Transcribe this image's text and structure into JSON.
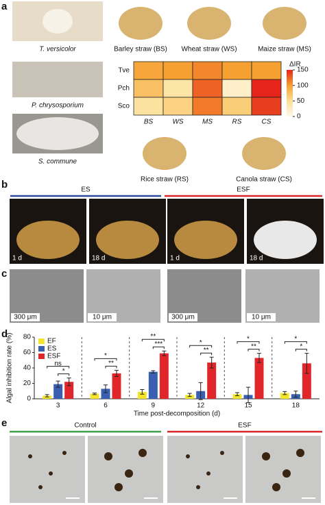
{
  "panel_labels": [
    "a",
    "b",
    "c",
    "d",
    "e"
  ],
  "panel_a": {
    "fungi": [
      "T. versicolor",
      "P. chrysosporium",
      "S. commune"
    ],
    "straws": [
      "Barley straw (BS)",
      "Wheat straw (WS)",
      "Maize straw (MS)",
      "Rice straw (RS)",
      "Canola straw (CS)"
    ],
    "heatmap": {
      "type": "heatmap",
      "rows": [
        "Tve",
        "Pch",
        "Sco"
      ],
      "columns": [
        "BS",
        "WS",
        "MS",
        "RS",
        "CS"
      ],
      "values": [
        [
          95,
          100,
          110,
          100,
          100
        ],
        [
          75,
          40,
          125,
          20,
          150
        ],
        [
          45,
          60,
          115,
          65,
          140
        ]
      ],
      "colorbar_title": "ΔIR",
      "lim": [
        0,
        150
      ],
      "ticks": [
        0,
        50,
        100,
        150
      ]
    }
  },
  "panel_b": {
    "groups": [
      "ES",
      "ESF"
    ],
    "time_labels": [
      "1 d",
      "18 d",
      "1 d",
      "18 d"
    ]
  },
  "panel_c": {
    "scale_labels": [
      "300 μm",
      "10 μm",
      "300 μm",
      "10 μm"
    ]
  },
  "chart_data": {
    "type": "bar",
    "ylabel": "Algal inhibition rate (%)",
    "xlabel": "Time post-decomposition (d)",
    "categories": [
      "3",
      "6",
      "9",
      "12",
      "15",
      "18"
    ],
    "series": [
      {
        "name": "EF",
        "color": "#f2e52c",
        "values": [
          4,
          6.5,
          9,
          5,
          6,
          7.5
        ],
        "errors": [
          1.5,
          1,
          3,
          2,
          2,
          2
        ]
      },
      {
        "name": "ES",
        "color": "#3a5fb0",
        "values": [
          19,
          13,
          35,
          10,
          5,
          6
        ],
        "errors": [
          4,
          5,
          1.5,
          11,
          10,
          4
        ]
      },
      {
        "name": "ESF",
        "color": "#e0262a",
        "values": [
          22,
          33,
          59,
          47,
          53,
          46
        ],
        "errors": [
          5,
          4,
          3,
          7,
          6,
          13
        ]
      }
    ],
    "significance": [
      [
        "*",
        "ns"
      ],
      [
        "**",
        "*"
      ],
      [
        "***",
        "**"
      ],
      [
        "**",
        "*"
      ],
      [
        "**",
        "*"
      ],
      [
        "*",
        "*"
      ]
    ],
    "ylim": [
      0,
      80
    ],
    "yticks": [
      0,
      20,
      40,
      60,
      80
    ],
    "legend": "upper left"
  },
  "panel_e": {
    "groups": [
      "Control",
      "ESF"
    ]
  }
}
